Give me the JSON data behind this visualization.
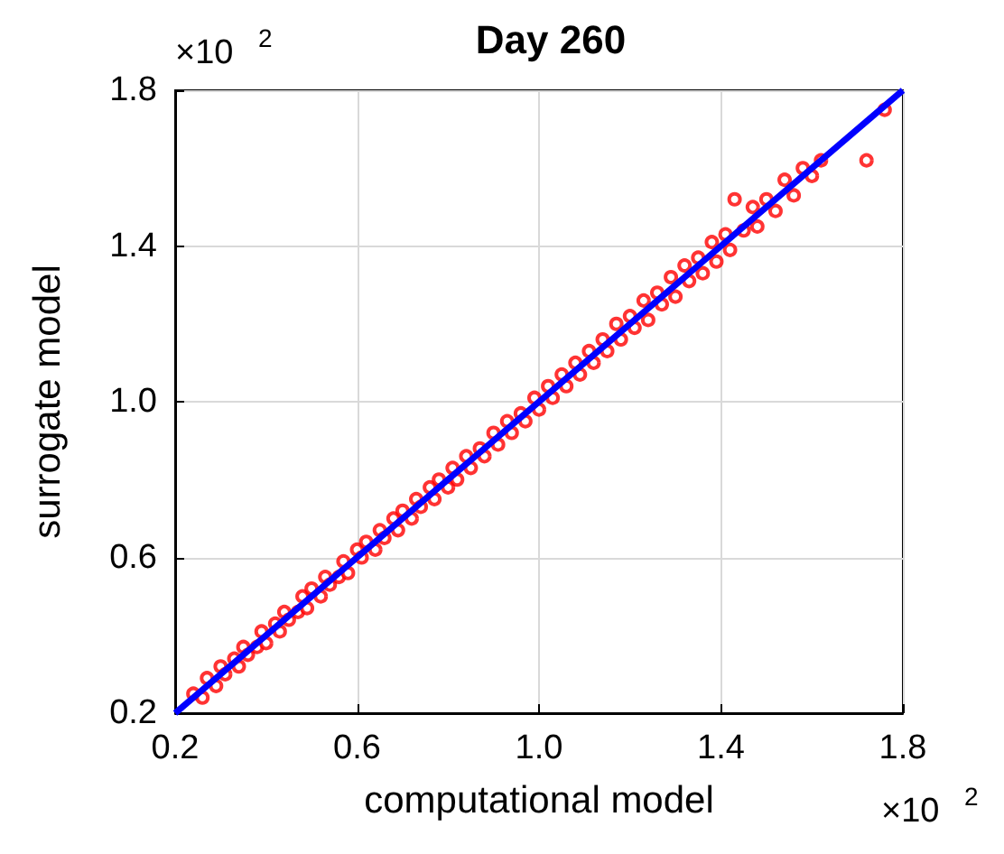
{
  "chart_data": {
    "type": "scatter",
    "title": "Day 260",
    "xlabel": "computational model",
    "ylabel": "surrogate model",
    "annotations": [
      "×10$^{2}$",
      "×10$^{2}$"
    ],
    "xlim": [
      0.2,
      1.8
    ],
    "xticks": [
      0.2,
      0.6,
      {
        "value": 1,
        "label": "1.0"
      },
      1.4,
      1.8
    ],
    "ylim": [
      0.2,
      1.8
    ],
    "yticks": [
      0.2,
      0.6,
      {
        "value": 1,
        "label": "1.0"
      },
      1.4,
      1.8
    ],
    "grid": true,
    "series": [
      {
        "color": "#ff0000",
        "marker": "circle",
        "x": [
          0.24,
          0.26,
          0.27,
          0.29,
          0.3,
          0.31,
          0.33,
          0.34,
          0.35,
          0.36,
          0.38,
          0.39,
          0.4,
          0.42,
          0.43,
          0.44,
          0.45,
          0.47,
          0.48,
          0.49,
          0.5,
          0.52,
          0.53,
          0.54,
          0.56,
          0.57,
          0.58,
          0.6,
          0.61,
          0.62,
          0.64,
          0.65,
          0.66,
          0.68,
          0.69,
          0.7,
          0.72,
          0.73,
          0.74,
          0.76,
          0.77,
          0.78,
          0.8,
          0.81,
          0.82,
          0.84,
          0.85,
          0.87,
          0.88,
          0.9,
          0.91,
          0.93,
          0.94,
          0.96,
          0.97,
          0.99,
          1.0,
          1.02,
          1.03,
          1.05,
          1.06,
          1.08,
          1.09,
          1.11,
          1.12,
          1.14,
          1.15,
          1.17,
          1.18,
          1.2,
          1.21,
          1.23,
          1.24,
          1.26,
          1.27,
          1.29,
          1.3,
          1.32,
          1.33,
          1.35,
          1.36,
          1.38,
          1.39,
          1.41,
          1.42,
          1.43,
          1.45,
          1.47,
          1.48,
          1.5,
          1.52,
          1.54,
          1.56,
          1.58,
          1.6,
          1.62,
          1.72,
          1.76
        ],
        "values": [
          0.25,
          0.24,
          0.29,
          0.27,
          0.32,
          0.3,
          0.34,
          0.32,
          0.37,
          0.35,
          0.37,
          0.41,
          0.38,
          0.43,
          0.41,
          0.46,
          0.44,
          0.46,
          0.5,
          0.47,
          0.52,
          0.5,
          0.55,
          0.53,
          0.55,
          0.59,
          0.56,
          0.62,
          0.6,
          0.64,
          0.62,
          0.67,
          0.65,
          0.7,
          0.67,
          0.72,
          0.7,
          0.75,
          0.73,
          0.78,
          0.75,
          0.8,
          0.78,
          0.83,
          0.8,
          0.86,
          0.83,
          0.88,
          0.86,
          0.92,
          0.89,
          0.95,
          0.92,
          0.97,
          0.95,
          1.01,
          0.98,
          1.04,
          1.01,
          1.07,
          1.04,
          1.1,
          1.07,
          1.13,
          1.1,
          1.16,
          1.13,
          1.2,
          1.16,
          1.22,
          1.19,
          1.26,
          1.21,
          1.28,
          1.25,
          1.32,
          1.27,
          1.35,
          1.31,
          1.37,
          1.33,
          1.41,
          1.36,
          1.43,
          1.39,
          1.52,
          1.44,
          1.5,
          1.45,
          1.52,
          1.49,
          1.57,
          1.53,
          1.6,
          1.58,
          1.62,
          1.62,
          1.75
        ]
      },
      {
        "type": "line",
        "color": "#0000ff",
        "marker": "none",
        "line_style": "solid",
        "x": [
          0.2,
          1.8
        ],
        "values": [
          0.2,
          1.8
        ]
      }
    ]
  }
}
